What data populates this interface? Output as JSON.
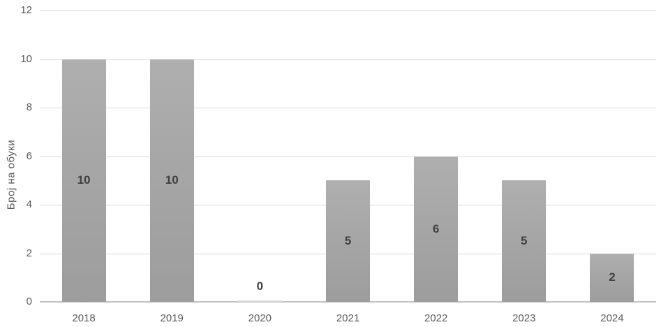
{
  "chart_data": {
    "type": "bar",
    "title": "",
    "xlabel": "",
    "ylabel": "Број на обуки",
    "categories": [
      "2018",
      "2019",
      "2020",
      "2021",
      "2022",
      "2023",
      "2024"
    ],
    "values": [
      10,
      10,
      0,
      5,
      6,
      5,
      2
    ],
    "data_labels": [
      "10",
      "10",
      "0",
      "5",
      "6",
      "5",
      "2"
    ],
    "ylim": [
      0,
      12
    ],
    "yticks": [
      0,
      2,
      4,
      6,
      8,
      10,
      12
    ],
    "grid": true,
    "legend_position": "none",
    "colors": {
      "bar": "#a6a6a6",
      "gridline": "#d9d9d9",
      "axis_line": "#c3c3c3",
      "tick_text": "#595959",
      "data_label": "#404040",
      "background": "#ffffff"
    }
  }
}
